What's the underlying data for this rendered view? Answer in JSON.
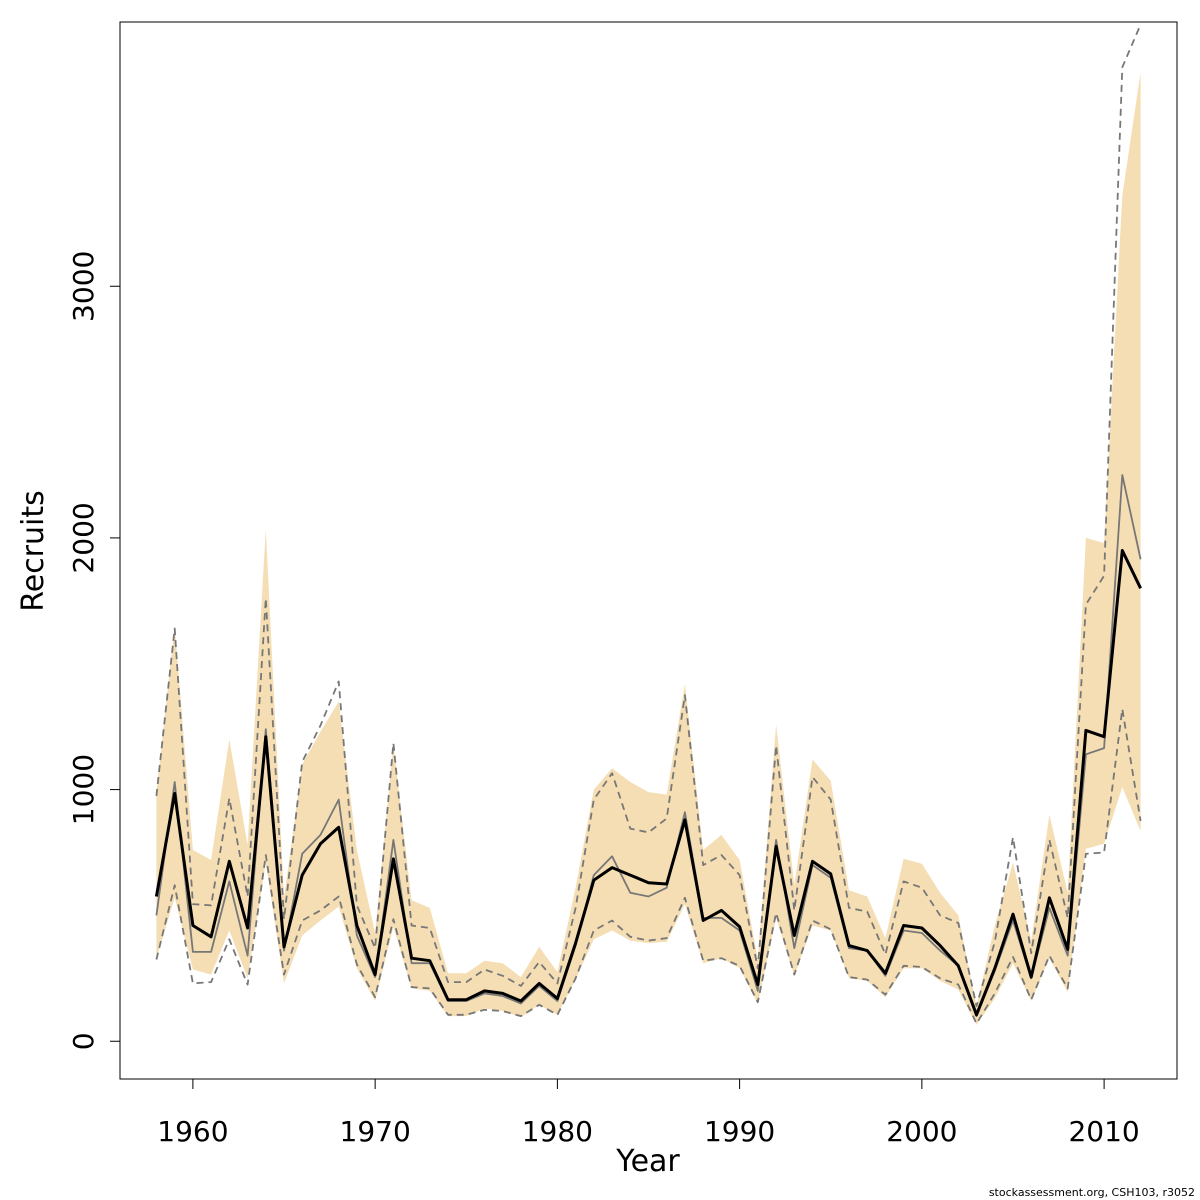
{
  "chart_data": {
    "type": "line",
    "title": "",
    "xlabel": "Year",
    "ylabel": "Recruits",
    "xlim": [
      1956,
      2014
    ],
    "ylim": [
      -150,
      4050
    ],
    "x_ticks": [
      1960,
      1970,
      1980,
      1990,
      2000,
      2010
    ],
    "x_tick_labels": [
      "1960",
      "1970",
      "1980",
      "1990",
      "2000",
      "2010"
    ],
    "y_ticks": [
      0,
      1000,
      2000,
      3000
    ],
    "y_tick_labels": [
      "0",
      "1000",
      "2000",
      "3000"
    ],
    "grid": false,
    "legend": "none",
    "x": [
      1958,
      1959,
      1960,
      1961,
      1962,
      1963,
      1964,
      1965,
      1966,
      1967,
      1968,
      1969,
      1970,
      1971,
      1972,
      1973,
      1974,
      1975,
      1976,
      1977,
      1978,
      1979,
      1980,
      1981,
      1982,
      1983,
      1984,
      1985,
      1986,
      1987,
      1988,
      1989,
      1990,
      1991,
      1992,
      1993,
      1994,
      1995,
      1996,
      1997,
      1998,
      1999,
      2000,
      2001,
      2002,
      2003,
      2004,
      2005,
      2006,
      2007,
      2008,
      2009,
      2010,
      2011,
      2012
    ],
    "series": [
      {
        "values": [
          575,
          985,
          460,
          415,
          715,
          450,
          1210,
          375,
          660,
          785,
          850,
          460,
          265,
          725,
          330,
          320,
          165,
          165,
          200,
          190,
          160,
          230,
          170,
          390,
          640,
          690,
          660,
          630,
          625,
          880,
          480,
          520,
          455,
          225,
          775,
          420,
          715,
          665,
          380,
          360,
          270,
          460,
          450,
          380,
          300,
          105,
          290,
          505,
          255,
          570,
          365,
          1235,
          1210,
          1950,
          1800
        ],
        "color": "#000000"
      },
      {
        "values": [
          500,
          1030,
          355,
          355,
          635,
          340,
          1240,
          360,
          745,
          820,
          960,
          420,
          255,
          800,
          310,
          310,
          160,
          160,
          190,
          180,
          150,
          220,
          160,
          380,
          660,
          735,
          590,
          575,
          610,
          910,
          490,
          490,
          440,
          200,
          800,
          370,
          700,
          650,
          370,
          360,
          260,
          440,
          430,
          360,
          300,
          100,
          280,
          480,
          250,
          530,
          340,
          1140,
          1165,
          2250,
          1915
        ],
        "color": "#777777"
      },
      {
        "values": [
          975,
          1640,
          545,
          540,
          965,
          575,
          1760,
          485,
          1110,
          1255,
          1430,
          540,
          370,
          1185,
          460,
          450,
          235,
          235,
          285,
          260,
          220,
          315,
          230,
          530,
          960,
          1065,
          845,
          830,
          885,
          1375,
          700,
          740,
          660,
          290,
          1175,
          520,
          1050,
          960,
          530,
          515,
          345,
          635,
          610,
          500,
          470,
          140,
          395,
          810,
          350,
          800,
          490,
          1735,
          1850,
          3870,
          4040
        ],
        "color": "#777777",
        "style": "dashed"
      },
      {
        "values": [
          325,
          620,
          230,
          235,
          405,
          225,
          740,
          265,
          480,
          520,
          575,
          305,
          175,
          485,
          215,
          210,
          105,
          105,
          125,
          120,
          100,
          145,
          105,
          250,
          440,
          480,
          415,
          400,
          410,
          570,
          320,
          330,
          300,
          155,
          510,
          265,
          480,
          445,
          255,
          245,
          185,
          300,
          295,
          250,
          225,
          70,
          190,
          335,
          165,
          340,
          210,
          745,
          750,
          1320,
          875
        ],
        "color": "#777777",
        "style": "dashed"
      }
    ],
    "band": {
      "color": "#f5deb3",
      "upper": [
        990,
        1650,
        760,
        720,
        1200,
        780,
        2035,
        570,
        1100,
        1230,
        1350,
        760,
        430,
        1180,
        560,
        530,
        270,
        270,
        320,
        310,
        255,
        375,
        275,
        610,
        1000,
        1085,
        1030,
        990,
        980,
        1420,
        760,
        820,
        720,
        325,
        1260,
        620,
        1120,
        1035,
        600,
        575,
        410,
        725,
        705,
        590,
        500,
        140,
        460,
        710,
        400,
        900,
        590,
        2000,
        1980,
        3360,
        3850
      ],
      "lower": [
        330,
        570,
        285,
        265,
        440,
        250,
        710,
        230,
        420,
        480,
        535,
        290,
        160,
        455,
        210,
        200,
        100,
        100,
        130,
        120,
        95,
        145,
        105,
        245,
        405,
        440,
        400,
        390,
        395,
        545,
        310,
        330,
        290,
        150,
        490,
        260,
        460,
        440,
        250,
        240,
        175,
        290,
        290,
        240,
        205,
        65,
        170,
        310,
        160,
        330,
        195,
        765,
        785,
        1010,
        835
      ]
    }
  },
  "footnote": "stockassessment.org, CSH103, r3052"
}
